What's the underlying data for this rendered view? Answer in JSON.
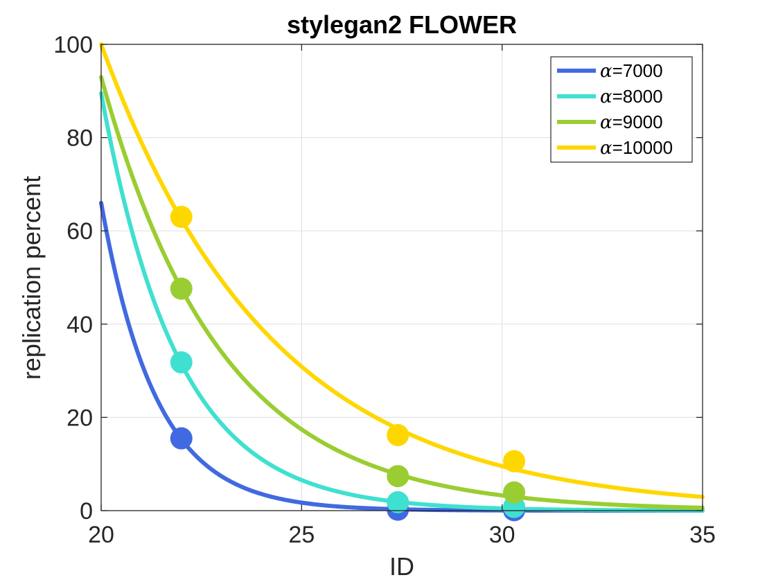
{
  "chart_data": {
    "type": "line",
    "title": "stylegan2 FLOWER",
    "xlabel": "ID",
    "ylabel": "replication percent",
    "xlim": [
      20,
      35
    ],
    "ylim": [
      0,
      100
    ],
    "xticks": [
      20,
      25,
      30,
      35
    ],
    "yticks": [
      0,
      20,
      40,
      60,
      80,
      100
    ],
    "grid": true,
    "legend_position": "top-right",
    "series": [
      {
        "name": "α=7000",
        "alpha_symbol": "α",
        "alpha_value": "=7000",
        "color": "#4169E1",
        "points": [
          [
            22.0,
            15.5
          ],
          [
            27.4,
            0.2
          ],
          [
            30.3,
            0.1
          ]
        ],
        "curve": {
          "model": "exponential",
          "a": 66,
          "b": 0.73
        }
      },
      {
        "name": "α=8000",
        "alpha_symbol": "α",
        "alpha_value": "=8000",
        "color": "#40E0D0",
        "points": [
          [
            22.0,
            31.8
          ],
          [
            27.4,
            1.8
          ],
          [
            30.3,
            0.8
          ]
        ],
        "curve": {
          "model": "exponential",
          "a": 89.5,
          "b": 0.523
        }
      },
      {
        "name": "α=9000",
        "alpha_symbol": "α",
        "alpha_value": "=9000",
        "color": "#9ACD32",
        "points": [
          [
            22.0,
            47.6
          ],
          [
            27.4,
            7.4
          ],
          [
            30.3,
            3.9
          ]
        ],
        "curve": {
          "model": "exponential",
          "a": 93,
          "b": 0.335
        }
      },
      {
        "name": "α=10000",
        "alpha_symbol": "α",
        "alpha_value": "=10000",
        "color": "#FFD700",
        "points": [
          [
            22.0,
            63.0
          ],
          [
            27.4,
            16.2
          ],
          [
            30.3,
            10.6
          ]
        ],
        "curve": {
          "model": "exponential",
          "a": 100,
          "b": 0.235
        }
      }
    ]
  }
}
